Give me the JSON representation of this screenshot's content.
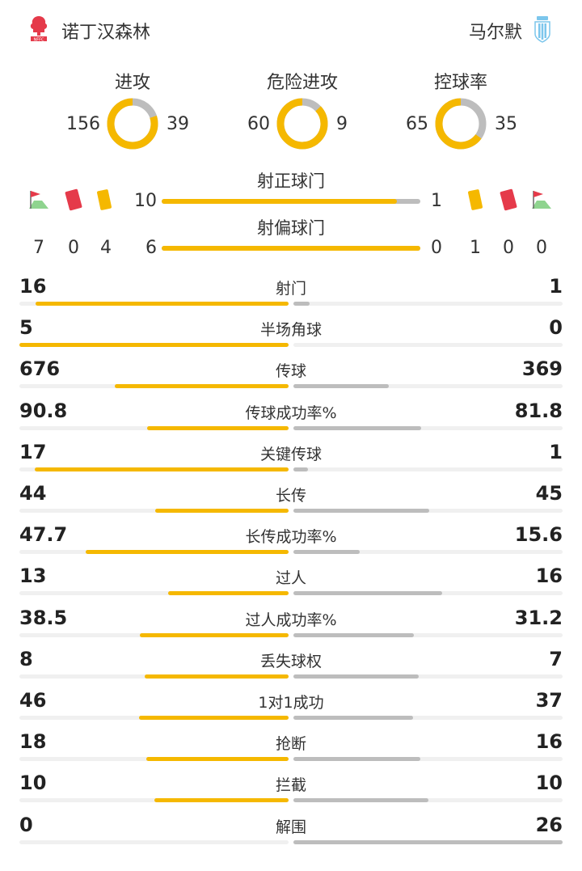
{
  "colors": {
    "home": "#f5b800",
    "away": "#bdbdbd",
    "track": "#f0f0f0",
    "red_card": "#e53a4a",
    "yellow_card": "#f5b800"
  },
  "header": {
    "home_team": "诺丁汉森林",
    "away_team": "马尔默",
    "home_logo_icon": "nottingham-forest-crest-icon",
    "away_logo_icon": "malmo-crest-icon"
  },
  "rings": [
    {
      "label": "进攻",
      "home": 156,
      "away": 39
    },
    {
      "label": "危险进攻",
      "home": 60,
      "away": 9
    },
    {
      "label": "控球率",
      "home": 65,
      "away": 35
    }
  ],
  "shots_on_target": {
    "label": "射正球门",
    "home": 10,
    "away": 1
  },
  "shots_off_target": {
    "label": "射偏球门",
    "home": 6,
    "away": 0
  },
  "home_events": {
    "corners": 7,
    "red_cards": 0,
    "yellow_cards": 4
  },
  "away_events": {
    "yellow_cards": 1,
    "red_cards": 0,
    "corners": 0
  },
  "event_icons": [
    "corner-flag-icon",
    "red-card-icon",
    "yellow-card-icon"
  ],
  "stats": [
    {
      "label": "射门",
      "home": "16",
      "away": "1",
      "home_v": 16,
      "away_v": 1
    },
    {
      "label": "半场角球",
      "home": "5",
      "away": "0",
      "home_v": 5,
      "away_v": 0
    },
    {
      "label": "传球",
      "home": "676",
      "away": "369",
      "home_v": 676,
      "away_v": 369
    },
    {
      "label": "传球成功率%",
      "home": "90.8",
      "away": "81.8",
      "home_v": 90.8,
      "away_v": 81.8
    },
    {
      "label": "关键传球",
      "home": "17",
      "away": "1",
      "home_v": 17,
      "away_v": 1
    },
    {
      "label": "长传",
      "home": "44",
      "away": "45",
      "home_v": 44,
      "away_v": 45
    },
    {
      "label": "长传成功率%",
      "home": "47.7",
      "away": "15.6",
      "home_v": 47.7,
      "away_v": 15.6
    },
    {
      "label": "过人",
      "home": "13",
      "away": "16",
      "home_v": 13,
      "away_v": 16
    },
    {
      "label": "过人成功率%",
      "home": "38.5",
      "away": "31.2",
      "home_v": 38.5,
      "away_v": 31.2
    },
    {
      "label": "丢失球权",
      "home": "8",
      "away": "7",
      "home_v": 8,
      "away_v": 7
    },
    {
      "label": "1对1成功",
      "home": "46",
      "away": "37",
      "home_v": 46,
      "away_v": 37
    },
    {
      "label": "抢断",
      "home": "18",
      "away": "16",
      "home_v": 18,
      "away_v": 16
    },
    {
      "label": "拦截",
      "home": "10",
      "away": "10",
      "home_v": 10,
      "away_v": 10
    },
    {
      "label": "解围",
      "home": "0",
      "away": "26",
      "home_v": 0,
      "away_v": 26
    }
  ]
}
